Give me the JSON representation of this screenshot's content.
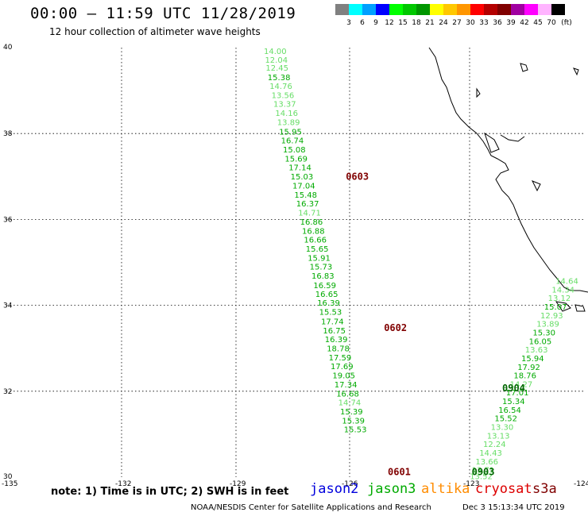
{
  "header": {
    "title": "00:00 – 11:59 UTC 11/28/2019",
    "subtitle": "12 hour collection of altimeter wave heights"
  },
  "colorbar": {
    "unit": "(ft)",
    "bins": [
      {
        "label": "3",
        "color": "#808080"
      },
      {
        "label": "6",
        "color": "#00ffff"
      },
      {
        "label": "9",
        "color": "#00a0ff"
      },
      {
        "label": "12",
        "color": "#0000ff"
      },
      {
        "label": "15",
        "color": "#00ff00"
      },
      {
        "label": "18",
        "color": "#00c800"
      },
      {
        "label": "21",
        "color": "#009600"
      },
      {
        "label": "24",
        "color": "#ffff00"
      },
      {
        "label": "27",
        "color": "#ffc800"
      },
      {
        "label": "30",
        "color": "#ff9600"
      },
      {
        "label": "33",
        "color": "#ff0000"
      },
      {
        "label": "36",
        "color": "#b40000"
      },
      {
        "label": "39",
        "color": "#800000"
      },
      {
        "label": "42",
        "color": "#a000a0"
      },
      {
        "label": "45",
        "color": "#ff00ff"
      },
      {
        "label": "70",
        "color": "#ffb4ff"
      },
      {
        "label": "",
        "color": "#000000"
      }
    ]
  },
  "map": {
    "lon_range": [
      -135,
      -124
    ],
    "lat_range": [
      30,
      40
    ],
    "lon_ticks": [
      {
        "value": -135,
        "label": "-135"
      },
      {
        "value": -132,
        "label": "-132"
      },
      {
        "value": -129,
        "label": "-129"
      },
      {
        "value": -126,
        "label": "-126"
      },
      {
        "value": -123,
        "label": "-123"
      },
      {
        "value": -124,
        "label": "-124"
      }
    ],
    "lat_ticks": [
      {
        "value": 40,
        "label": "40"
      },
      {
        "value": 38,
        "label": "38"
      },
      {
        "value": 36,
        "label": "36"
      },
      {
        "value": 34,
        "label": "34"
      },
      {
        "value": 32,
        "label": "32"
      },
      {
        "value": 30,
        "label": "30"
      }
    ]
  },
  "tracks": [
    {
      "pass_label": "0603",
      "pass_color": "#800000",
      "pass_pos": {
        "lon": -126.1,
        "lat": 36.92
      },
      "points": [
        {
          "v": "14.00",
          "lon": -128.25,
          "lat": 39.85,
          "c": "#66dd66"
        },
        {
          "v": "12.04",
          "lon": -128.22,
          "lat": 39.65,
          "c": "#66dd66"
        },
        {
          "v": "12.45",
          "lon": -128.2,
          "lat": 39.46,
          "c": "#66dd66"
        },
        {
          "v": "15.38",
          "lon": -128.15,
          "lat": 39.24,
          "c": "#00aa00"
        },
        {
          "v": "14.76",
          "lon": -128.1,
          "lat": 39.04,
          "c": "#66dd66"
        },
        {
          "v": "13.56",
          "lon": -128.05,
          "lat": 38.83,
          "c": "#66dd66"
        },
        {
          "v": "13.37",
          "lon": -128.0,
          "lat": 38.62,
          "c": "#66dd66"
        },
        {
          "v": "14.16",
          "lon": -127.95,
          "lat": 38.41,
          "c": "#66dd66"
        },
        {
          "v": "13.89",
          "lon": -127.9,
          "lat": 38.2,
          "c": "#66dd66"
        },
        {
          "v": "15.95",
          "lon": -127.85,
          "lat": 37.98,
          "c": "#00aa00"
        },
        {
          "v": "16.74",
          "lon": -127.8,
          "lat": 37.77,
          "c": "#00aa00"
        },
        {
          "v": "15.08",
          "lon": -127.75,
          "lat": 37.56,
          "c": "#00aa00"
        },
        {
          "v": "15.69",
          "lon": -127.7,
          "lat": 37.35,
          "c": "#00aa00"
        },
        {
          "v": "17.14",
          "lon": -127.6,
          "lat": 37.14,
          "c": "#00aa00"
        },
        {
          "v": "15.03",
          "lon": -127.55,
          "lat": 36.93,
          "c": "#00aa00"
        },
        {
          "v": "17.04",
          "lon": -127.5,
          "lat": 36.72,
          "c": "#00aa00"
        },
        {
          "v": "15.48",
          "lon": -127.45,
          "lat": 36.51,
          "c": "#00aa00"
        },
        {
          "v": "16.37",
          "lon": -127.4,
          "lat": 36.3,
          "c": "#00aa00"
        },
        {
          "v": "14.71",
          "lon": -127.35,
          "lat": 36.09,
          "c": "#66dd66"
        },
        {
          "v": "16.86",
          "lon": -127.3,
          "lat": 35.88,
          "c": "#00aa00"
        },
        {
          "v": "16.88",
          "lon": -127.25,
          "lat": 35.67,
          "c": "#00aa00"
        },
        {
          "v": "16.66",
          "lon": -127.2,
          "lat": 35.46,
          "c": "#00aa00"
        },
        {
          "v": "15.65",
          "lon": -127.15,
          "lat": 35.25,
          "c": "#00aa00"
        },
        {
          "v": "15.91",
          "lon": -127.1,
          "lat": 35.04,
          "c": "#00aa00"
        },
        {
          "v": "15.73",
          "lon": -127.05,
          "lat": 34.83,
          "c": "#00aa00"
        },
        {
          "v": "16.83",
          "lon": -127.0,
          "lat": 34.62,
          "c": "#00aa00"
        }
      ]
    },
    {
      "pass_label": "0602",
      "pass_color": "#800000",
      "pass_pos": {
        "lon": -125.1,
        "lat": 33.4
      },
      "points": [
        {
          "v": "16.59",
          "lon": -126.95,
          "lat": 34.4,
          "c": "#00aa00"
        },
        {
          "v": "16.65",
          "lon": -126.9,
          "lat": 34.2,
          "c": "#00aa00"
        },
        {
          "v": "16.39",
          "lon": -126.85,
          "lat": 33.99,
          "c": "#00aa00"
        },
        {
          "v": "15.53",
          "lon": -126.8,
          "lat": 33.78,
          "c": "#00aa00"
        },
        {
          "v": "17.74",
          "lon": -126.75,
          "lat": 33.56,
          "c": "#00aa00"
        },
        {
          "v": "16.75",
          "lon": -126.7,
          "lat": 33.35,
          "c": "#00aa00"
        },
        {
          "v": "16.39",
          "lon": -126.65,
          "lat": 33.14,
          "c": "#00aa00"
        },
        {
          "v": "18.78",
          "lon": -126.6,
          "lat": 32.93,
          "c": "#00aa00"
        },
        {
          "v": "17.59",
          "lon": -126.55,
          "lat": 32.72,
          "c": "#00aa00"
        },
        {
          "v": "17.69",
          "lon": -126.5,
          "lat": 32.51,
          "c": "#00aa00"
        },
        {
          "v": "19.05",
          "lon": -126.45,
          "lat": 32.3,
          "c": "#00aa00"
        },
        {
          "v": "17.34",
          "lon": -126.4,
          "lat": 32.09,
          "c": "#00aa00"
        },
        {
          "v": "16.68",
          "lon": -126.35,
          "lat": 31.88,
          "c": "#00aa00"
        },
        {
          "v": "14.74",
          "lon": -126.3,
          "lat": 31.67,
          "c": "#66dd66"
        },
        {
          "v": "15.39",
          "lon": -126.25,
          "lat": 31.46,
          "c": "#00aa00"
        }
      ]
    },
    {
      "pass_label": "0601",
      "pass_color": "#800000",
      "pass_pos": {
        "lon": -125.0,
        "lat": 30.05
      },
      "points": [
        {
          "v": "15.39",
          "lon": -126.2,
          "lat": 31.25,
          "c": "#00aa00"
        },
        {
          "v": "15.53",
          "lon": -126.15,
          "lat": 31.04,
          "c": "#00aa00"
        }
      ]
    },
    {
      "pass_label": "0904",
      "pass_color": "#006600",
      "pass_pos": {
        "lon": -122.0,
        "lat": 32.0
      },
      "points": [
        {
          "v": "14.64",
          "lon": -120.6,
          "lat": 34.5,
          "c": "#66dd66"
        },
        {
          "v": "14.34",
          "lon": -120.7,
          "lat": 34.3,
          "c": "#66dd66"
        },
        {
          "v": "13.12",
          "lon": -120.8,
          "lat": 34.1,
          "c": "#66dd66"
        },
        {
          "v": "15.07",
          "lon": -120.9,
          "lat": 33.9,
          "c": "#00aa00"
        },
        {
          "v": "12.93",
          "lon": -121.0,
          "lat": 33.7,
          "c": "#66dd66"
        },
        {
          "v": "13.89",
          "lon": -121.1,
          "lat": 33.5,
          "c": "#66dd66"
        },
        {
          "v": "15.30",
          "lon": -121.2,
          "lat": 33.3,
          "c": "#00aa00"
        },
        {
          "v": "16.05",
          "lon": -121.3,
          "lat": 33.1,
          "c": "#00aa00"
        },
        {
          "v": "13.63",
          "lon": -121.4,
          "lat": 32.9,
          "c": "#66dd66"
        },
        {
          "v": "15.94",
          "lon": -121.5,
          "lat": 32.7,
          "c": "#00aa00"
        },
        {
          "v": "17.92",
          "lon": -121.6,
          "lat": 32.5,
          "c": "#00aa00"
        },
        {
          "v": "18.76",
          "lon": -121.7,
          "lat": 32.3,
          "c": "#00aa00"
        },
        {
          "v": "14.27",
          "lon": -121.8,
          "lat": 32.1,
          "c": "#66dd66"
        },
        {
          "v": "17.01",
          "lon": -121.9,
          "lat": 31.9,
          "c": "#00aa00"
        }
      ]
    },
    {
      "pass_label": "0903",
      "pass_color": "#006600",
      "pass_pos": {
        "lon": -122.8,
        "lat": 30.05
      },
      "points": [
        {
          "v": "15.34",
          "lon": -122.0,
          "lat": 31.7,
          "c": "#00aa00"
        },
        {
          "v": "16.54",
          "lon": -122.1,
          "lat": 31.5,
          "c": "#00aa00"
        },
        {
          "v": "15.52",
          "lon": -122.2,
          "lat": 31.3,
          "c": "#00aa00"
        },
        {
          "v": "13.30",
          "lon": -122.3,
          "lat": 31.1,
          "c": "#66dd66"
        },
        {
          "v": "13.13",
          "lon": -122.4,
          "lat": 30.9,
          "c": "#66dd66"
        },
        {
          "v": "12.24",
          "lon": -122.5,
          "lat": 30.7,
          "c": "#66dd66"
        },
        {
          "v": "14.43",
          "lon": -122.6,
          "lat": 30.5,
          "c": "#66dd66"
        },
        {
          "v": "13.66",
          "lon": -122.7,
          "lat": 30.3,
          "c": "#66dd66"
        },
        {
          "v": "13.71",
          "lon": -122.8,
          "lat": 30.1,
          "c": "#66dd66"
        },
        {
          "v": "13.52",
          "lon": -122.85,
          "lat": 29.95,
          "c": "#66dd66"
        }
      ]
    }
  ],
  "footer": {
    "note": "note:  1) Time is in UTC;  2) SWH is in feet",
    "satellites": [
      {
        "name": "jason2",
        "color": "#0000dd"
      },
      {
        "name": "jason3",
        "color": "#00aa00"
      },
      {
        "name": "altika",
        "color": "#ff8c00"
      },
      {
        "name": "cryosat",
        "color": "#dd0000"
      },
      {
        "name": "s3a",
        "color": "#800000"
      }
    ],
    "credit": "NOAA/NESDIS Center for Satellite Applications and Research",
    "timestamp": "Dec  3 15:13:34 UTC 2019"
  }
}
